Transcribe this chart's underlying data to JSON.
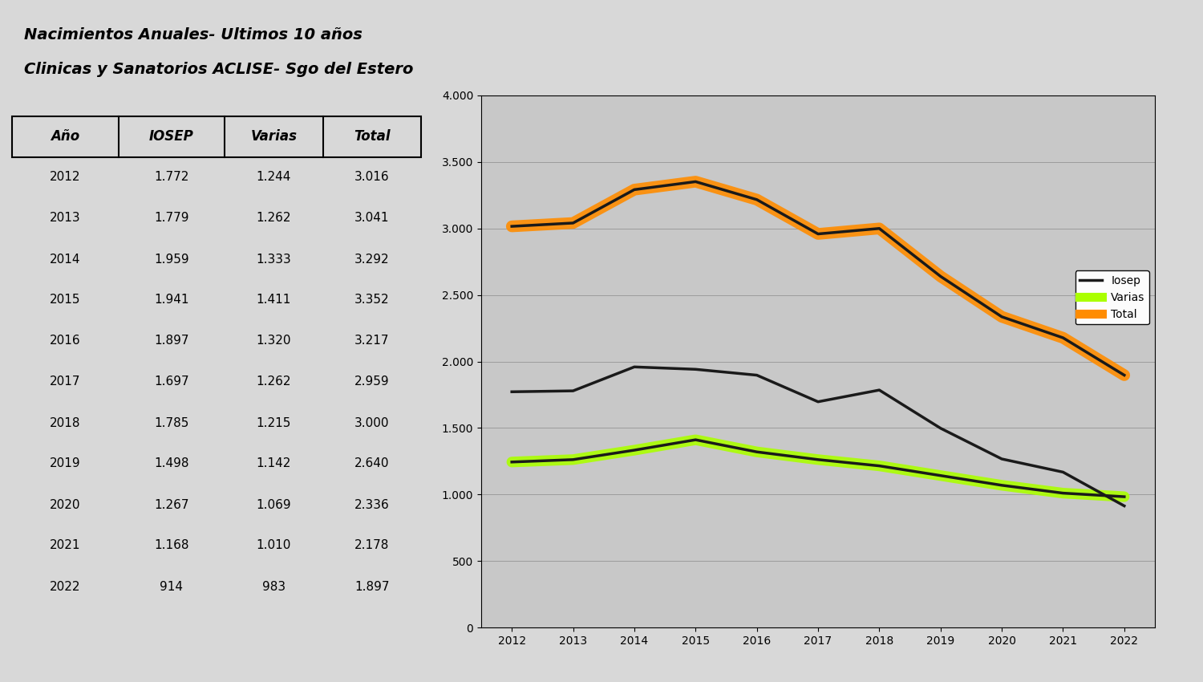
{
  "title_line1": "Nacimientos Anuales- Ultimos 10 años",
  "title_line2": "Clinicas y Sanatorios ACLISE- Sgo del Estero",
  "years": [
    2012,
    2013,
    2014,
    2015,
    2016,
    2017,
    2018,
    2019,
    2020,
    2021,
    2022
  ],
  "iosep": [
    1772,
    1779,
    1959,
    1941,
    1897,
    1697,
    1785,
    1498,
    1267,
    1168,
    914
  ],
  "varias": [
    1244,
    1262,
    1333,
    1411,
    1320,
    1262,
    1215,
    1142,
    1069,
    1010,
    983
  ],
  "total": [
    3016,
    3041,
    3292,
    3352,
    3217,
    2959,
    3000,
    2640,
    2336,
    2178,
    1897
  ],
  "table_headers": [
    "Año",
    "IOSEP",
    "Varias",
    "Total"
  ],
  "iosep_color": "#1a1a1a",
  "varias_color": "#aaff00",
  "total_color_fill": "#ff8c00",
  "total_color_line": "#1a1a1a",
  "background_color": "#d8d8d8",
  "chart_bg_color": "#c8c8c8",
  "ylim": [
    0,
    4000
  ],
  "yticks": [
    0,
    500,
    1000,
    1500,
    2000,
    2500,
    3000,
    3500,
    4000
  ],
  "line_width": 2.5,
  "legend_iosep": "Iosep",
  "legend_varias": "Varias",
  "legend_total": "Total"
}
